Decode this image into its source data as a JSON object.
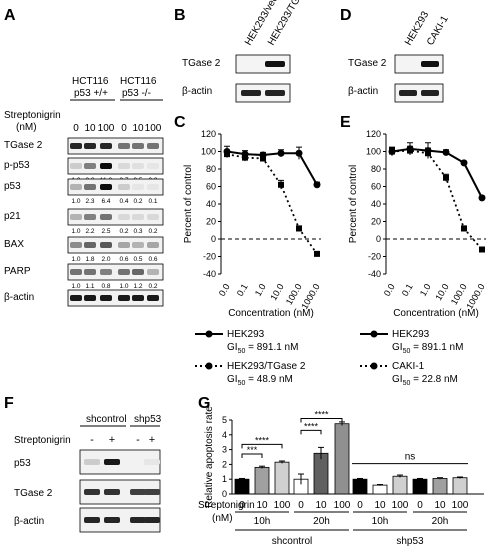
{
  "panel_letters": [
    "A",
    "B",
    "C",
    "D",
    "E",
    "F",
    "G"
  ],
  "panelA": {
    "cell_line_wt": "HCT116",
    "genotype_wt": "p53 +/+",
    "cell_line_ko": "HCT116",
    "genotype_ko": "p53 -/-",
    "treatment_label": "Streptonigrin",
    "unit_label": "(nM)",
    "doses": [
      "0",
      "10",
      "100",
      "0",
      "10",
      "100"
    ],
    "blots": [
      {
        "label": "TGase 2",
        "quant": []
      },
      {
        "label": "p-p53",
        "quant": [
          "1.0",
          "3.2",
          "11.2",
          "0.7",
          "0.5",
          "0.3"
        ]
      },
      {
        "label": "p53",
        "quant": [
          "1.0",
          "2.3",
          "6.4",
          "0.4",
          "0.2",
          "0.1"
        ]
      },
      {
        "label": "p21",
        "quant": [
          "1.0",
          "2.2",
          "2.5",
          "0.2",
          "0.3",
          "0.2"
        ]
      },
      {
        "label": "BAX",
        "quant": [
          "1.0",
          "1.8",
          "2.0",
          "0.6",
          "0.5",
          "0.6"
        ]
      },
      {
        "label": "PARP",
        "quant": [
          "1.0",
          "1.1",
          "0.8",
          "1.0",
          "1.2",
          "0.2"
        ]
      },
      {
        "label": "β-actin",
        "quant": []
      }
    ]
  },
  "panelB": {
    "lanes": [
      "HEK293/vec",
      "HEK293/TG2"
    ],
    "blots": [
      "TGase 2",
      "β-actin"
    ]
  },
  "panelD": {
    "lanes": [
      "HEK293",
      "CAKI-1"
    ],
    "blots": [
      "TGase 2",
      "β-actin"
    ]
  },
  "panelC": {
    "ylabel": "Percent of control",
    "xlabel": "Concentration (nM)",
    "yticks": [
      "120",
      "100",
      "80",
      "60",
      "40",
      "20",
      "0",
      "-20",
      "-40"
    ],
    "xticks": [
      "0.0",
      "0.1",
      "1.0",
      "10.0",
      "100.0",
      "1000.0"
    ],
    "legend": [
      {
        "name": "HEK293",
        "gi": "GI",
        "gisub": "50",
        "gival": " = 891.1 nM"
      },
      {
        "name": "HEK293/TGase 2",
        "gi": "GI",
        "gisub": "50",
        "gival": " = 48.9 nM"
      }
    ]
  },
  "panelE": {
    "ylabel": "Percent of control",
    "xlabel": "Concentration (nM)",
    "yticks": [
      "120",
      "100",
      "80",
      "60",
      "40",
      "20",
      "0",
      "-20",
      "-40"
    ],
    "xticks": [
      "0.0",
      "0.1",
      "1.0",
      "10.0",
      "100.0",
      "1000.0"
    ],
    "legend": [
      {
        "name": "HEK293",
        "gi": "GI",
        "gisub": "50",
        "gival": " = 891.1 nM"
      },
      {
        "name": "CAKI-1",
        "gi": "GI",
        "gisub": "50",
        "gival": " = 22.8 nM"
      }
    ]
  },
  "panelF": {
    "groups": [
      "shcontrol",
      "shp53"
    ],
    "treatment_label": "Streptonigrin",
    "signs": [
      "-",
      "+",
      "-",
      "+"
    ],
    "blots": [
      "p53",
      "TGase 2",
      "β-actin"
    ]
  },
  "panelG": {
    "ylabel": "Relative apoptosis rate",
    "yticks": [
      "0",
      "1",
      "2",
      "3",
      "4",
      "5"
    ],
    "treatment_label": "Streptonigrin",
    "unit_label": "(nM)",
    "doses": [
      "0",
      "10",
      "100",
      "0",
      "10",
      "100",
      "0",
      "10",
      "100",
      "0",
      "10",
      "100"
    ],
    "timepoints": [
      "10h",
      "20h",
      "10h",
      "20h"
    ],
    "groups": [
      "shcontrol",
      "shp53"
    ],
    "sig": [
      "***",
      "****",
      "****",
      "****",
      "ns"
    ]
  },
  "chart_data": [
    {
      "type": "line",
      "title": "",
      "xlabel": "Concentration (nM)",
      "ylabel": "Percent of control",
      "x": [
        "0.0",
        "0.1",
        "1.0",
        "10.0",
        "100.0",
        "1000.0"
      ],
      "ylim": [
        -40,
        120
      ],
      "series": [
        {
          "name": "HEK293",
          "values": [
            100,
            97,
            96,
            98,
            98,
            62
          ],
          "errors": [
            6,
            4,
            3,
            4,
            7,
            3
          ]
        },
        {
          "name": "HEK293/TGase 2",
          "values": [
            97,
            93,
            92,
            62,
            12,
            -17
          ],
          "errors": [
            4,
            4,
            3,
            5,
            3,
            2
          ]
        }
      ]
    },
    {
      "type": "line",
      "title": "",
      "xlabel": "Concentration (nM)",
      "ylabel": "Percent of control",
      "x": [
        "0.0",
        "0.1",
        "1.0",
        "10.0",
        "100.0",
        "1000.0"
      ],
      "ylim": [
        -40,
        120
      ],
      "series": [
        {
          "name": "HEK293",
          "values": [
            100,
            103,
            101,
            99,
            87,
            47
          ],
          "errors": [
            5,
            7,
            9,
            3,
            2,
            2
          ]
        },
        {
          "name": "CAKI-1",
          "values": [
            100,
            101,
            98,
            70,
            12,
            -12
          ],
          "errors": [
            4,
            5,
            6,
            4,
            3,
            2
          ]
        }
      ]
    },
    {
      "type": "bar",
      "title": "",
      "ylabel": "Relative apoptosis rate",
      "ylim": [
        0,
        5
      ],
      "categories": [
        "shcontrol 10h 0",
        "shcontrol 10h 10",
        "shcontrol 10h 100",
        "shcontrol 20h 0",
        "shcontrol 20h 10",
        "shcontrol 20h 100",
        "shp53 10h 0",
        "shp53 10h 10",
        "shp53 10h 100",
        "shp53 20h 0",
        "shp53 20h 10",
        "shp53 20h 100"
      ],
      "values": [
        1.0,
        1.8,
        2.15,
        1.0,
        2.75,
        4.75,
        1.0,
        0.6,
        1.2,
        1.0,
        1.05,
        1.1
      ],
      "errors": [
        0.05,
        0.08,
        0.08,
        0.35,
        0.4,
        0.12,
        0.05,
        0.04,
        0.08,
        0.05,
        0.05,
        0.05
      ],
      "colors": [
        "#000000",
        "#a0a0a0",
        "#d0d0d0",
        "#ffffff",
        "#606060",
        "#909090",
        "#000000",
        "#ffffff",
        "#d0d0d0",
        "#000000",
        "#a0a0a0",
        "#d0d0d0"
      ]
    }
  ]
}
